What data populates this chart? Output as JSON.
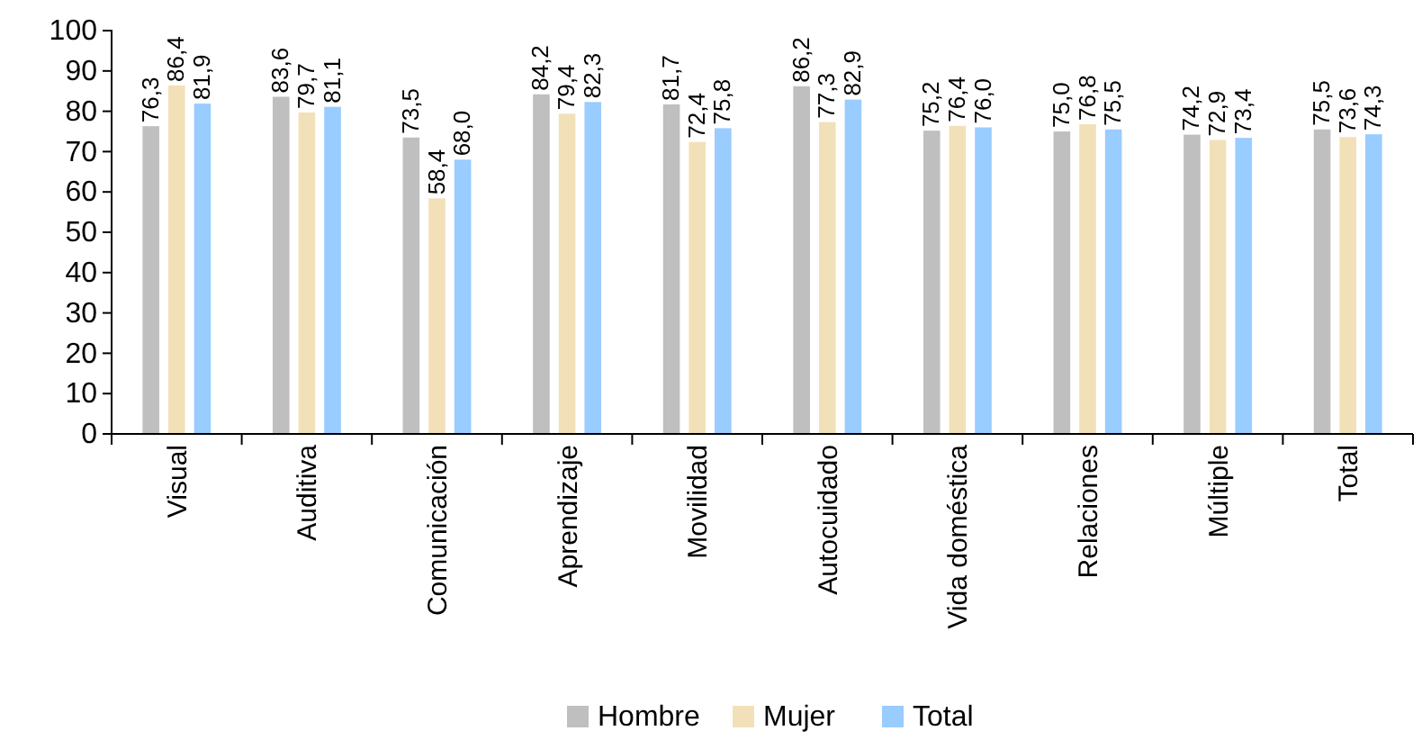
{
  "chart_data": {
    "type": "bar",
    "categories": [
      "Visual",
      "Auditiva",
      "Comunicación",
      "Aprendizaje",
      "Movilidad",
      "Autocuidado",
      "Vida doméstica",
      "Relaciones",
      "Múltiple",
      "Total"
    ],
    "series": [
      {
        "name": "Hombre",
        "color": "#bfbfbf",
        "values": [
          76.3,
          83.6,
          73.5,
          84.2,
          81.7,
          86.2,
          75.2,
          75.0,
          74.2,
          75.5
        ],
        "value_labels": [
          "76,3",
          "83,6",
          "73,5",
          "84,2",
          "81,7",
          "86,2",
          "75,2",
          "75,0",
          "74,2",
          "75,5"
        ]
      },
      {
        "name": "Mujer",
        "color": "#f2e1b8",
        "values": [
          86.4,
          79.7,
          58.4,
          79.4,
          72.4,
          77.3,
          76.4,
          76.8,
          72.9,
          73.6
        ],
        "value_labels": [
          "86,4",
          "79,7",
          "58,4",
          "79,4",
          "72,4",
          "77,3",
          "76,4",
          "76,8",
          "72,9",
          "73,6"
        ]
      },
      {
        "name": "Total",
        "color": "#99ccff",
        "values": [
          81.9,
          81.1,
          68.0,
          82.3,
          75.8,
          82.9,
          76.0,
          75.5,
          73.4,
          74.3
        ],
        "value_labels": [
          "81,9",
          "81,1",
          "68,0",
          "82,3",
          "75,8",
          "82,9",
          "76,0",
          "75,5",
          "73,4",
          "74,3"
        ]
      }
    ],
    "ylim": [
      0,
      100
    ],
    "yticks": [
      0,
      10,
      20,
      30,
      40,
      50,
      60,
      70,
      80,
      90,
      100
    ],
    "legend": "bottom"
  }
}
